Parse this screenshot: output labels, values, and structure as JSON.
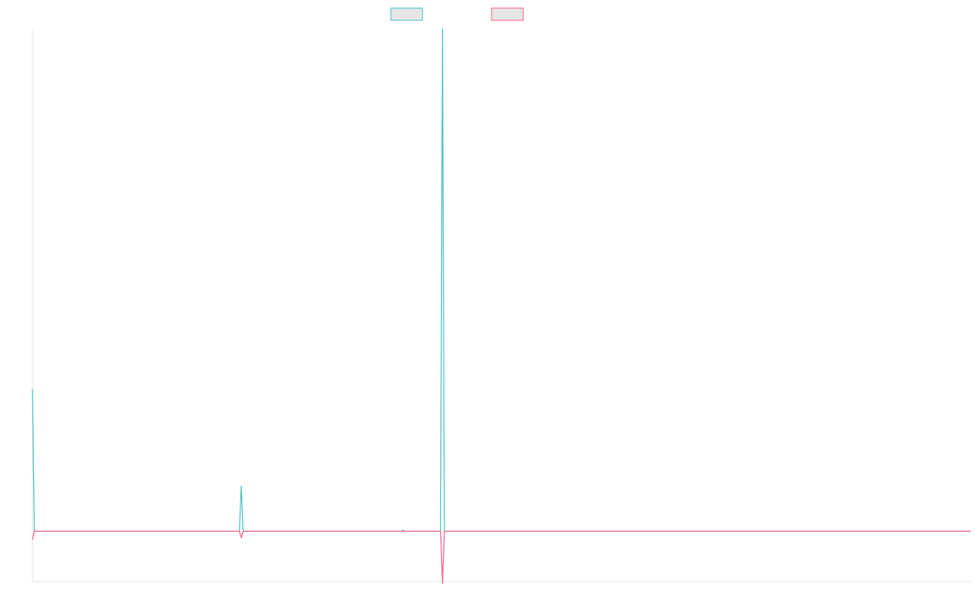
{
  "chart_data": {
    "type": "line",
    "title": "",
    "xlabel": "",
    "ylabel": "",
    "legend": {
      "placement": "top-center",
      "entries": [
        {
          "series_index": 0,
          "label": "",
          "color": "#4bc0c0"
        },
        {
          "series_index": 1,
          "label": "",
          "color": "#ff6384"
        }
      ]
    },
    "grid": false,
    "x_count": 500,
    "ylim": [
      -100,
      1000
    ],
    "series": [
      {
        "color": "#4bc0c0",
        "fill": "#e6e6e6",
        "points": [
          [
            0,
            283
          ],
          [
            1,
            0
          ],
          [
            110,
            0
          ],
          [
            111,
            90
          ],
          [
            112,
            0
          ],
          [
            196,
            0
          ],
          [
            197,
            2
          ],
          [
            198,
            0
          ],
          [
            217,
            0
          ],
          [
            218,
            1000
          ],
          [
            219,
            0
          ],
          [
            499,
            0
          ]
        ]
      },
      {
        "color": "#ff6384",
        "fill": "#e6e6e6",
        "points": [
          [
            0,
            -17
          ],
          [
            1,
            0
          ],
          [
            110,
            0
          ],
          [
            111,
            -13
          ],
          [
            112,
            0
          ],
          [
            217,
            0
          ],
          [
            218,
            -104
          ],
          [
            219,
            0
          ],
          [
            499,
            0
          ]
        ]
      }
    ]
  }
}
